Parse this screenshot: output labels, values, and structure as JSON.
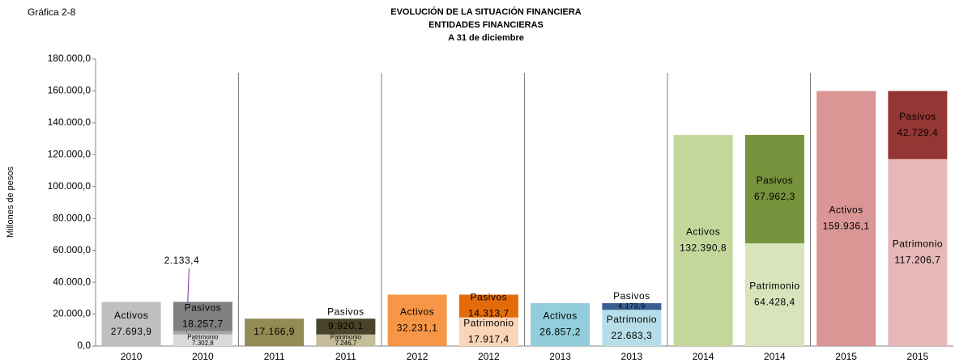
{
  "chart_data": {
    "type": "bar",
    "figure_label": "Gráfica 2-8",
    "title": [
      "EVOLUCIÓN DE LA SITUACIÓN  FINANCIERA",
      "ENTIDADES  FINANCIERAS",
      "A 31 de diciembre"
    ],
    "y_label": "Millones de pesos",
    "stacked": true,
    "categories": [
      "2010",
      "2010",
      "2011",
      "2011",
      "2012",
      "2012",
      "2013",
      "2013",
      "2014",
      "2014",
      "2015",
      "2015"
    ],
    "ylim": [
      0,
      180000
    ],
    "yticks": [
      {
        "value": 0,
        "label": "0,0"
      },
      {
        "value": 20000,
        "label": "20.000,0"
      },
      {
        "value": 40000,
        "label": "40.000,0"
      },
      {
        "value": 60000,
        "label": "60.000,0"
      },
      {
        "value": 80000,
        "label": "80.000,0"
      },
      {
        "value": 100000,
        "label": "100.000,0"
      },
      {
        "value": 120000,
        "label": "120.000,0"
      },
      {
        "value": 140000,
        "label": "140.000,0"
      },
      {
        "value": 160000,
        "label": "160.000,0"
      },
      {
        "value": 180000,
        "label": "180.000,0"
      }
    ],
    "grid": false,
    "series": [
      {
        "name": "Activos",
        "values": [
          27693.9,
          null,
          17166.9,
          null,
          32231.1,
          null,
          26857.2,
          null,
          132390.8,
          null,
          159936.1,
          null
        ],
        "value_labels": [
          "27.693,9",
          null,
          "17.166,9",
          null,
          "32.231,1",
          null,
          "26.857,2",
          null,
          "132.390,8",
          null,
          "159.936,1",
          null
        ],
        "labels": [
          "Activos",
          null,
          null,
          null,
          "Activos",
          null,
          "Activos",
          null,
          "Activos",
          null,
          "Activos",
          null
        ],
        "colors": [
          "#bfbfbf",
          null,
          "#948a54",
          null,
          "#f79646",
          null,
          "#92cddc",
          null,
          "#c4d79b",
          null,
          "#da9694",
          null
        ]
      },
      {
        "name": "Patrimonio",
        "values": [
          null,
          7302.8,
          null,
          7246.7,
          null,
          17917.4,
          null,
          22683.3,
          null,
          64428.4,
          null,
          117206.7
        ],
        "value_labels": [
          null,
          "7.302,8",
          null,
          "7.246,7",
          null,
          "17.917,4",
          null,
          "22.683,3",
          null,
          "64.428,4",
          null,
          "117.206,7"
        ],
        "labels": [
          null,
          "Patrimonio",
          null,
          "Patrimonio",
          null,
          "Patrimonio",
          null,
          "Patrimonio",
          null,
          "Patrimonio",
          null,
          "Patrimonio"
        ],
        "colors": [
          null,
          "#d9d9d9",
          null,
          "#c4bd97",
          null,
          "#fbd5b5",
          null,
          "#b7dee8",
          null,
          "#d8e4bc",
          null,
          "#e6b8b7"
        ]
      },
      {
        "values": [
          null,
          2133.4,
          null,
          null,
          null,
          null,
          null,
          null,
          null,
          null,
          null,
          null
        ],
        "value_labels": [
          null,
          "2.133,4",
          null,
          null,
          null,
          null,
          null,
          null,
          null,
          null,
          null,
          null
        ],
        "labels": [
          null,
          null,
          null,
          null,
          null,
          null,
          null,
          null,
          null,
          null,
          null,
          null
        ],
        "colors": [
          null,
          "#a6a6a6",
          null,
          null,
          null,
          null,
          null,
          null,
          null,
          null,
          null,
          null
        ]
      },
      {
        "name": "Pasivos",
        "values": [
          null,
          18257.7,
          null,
          9920.1,
          null,
          14313.7,
          null,
          4173.9,
          null,
          67962.3,
          null,
          42729.4
        ],
        "value_labels": [
          null,
          "18.257,7",
          null,
          "9.920,1",
          null,
          "14.313,7",
          null,
          "4.173,9",
          null,
          "67.962,3",
          null,
          "42.729,4"
        ],
        "labels": [
          null,
          "Pasivos",
          null,
          "Pasivos",
          null,
          "Pasivos",
          null,
          "Pasivos",
          null,
          "Pasivos",
          null,
          "Pasivos"
        ],
        "colors": [
          null,
          "#808080",
          null,
          "#494429",
          null,
          "#e36c09",
          null,
          "#366092",
          null,
          "#76923c",
          null,
          "#963634"
        ]
      }
    ]
  }
}
